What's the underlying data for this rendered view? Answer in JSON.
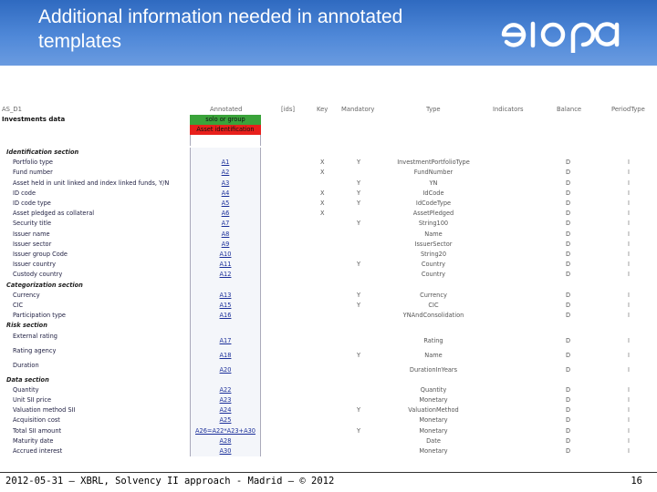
{
  "slide": {
    "title": "Additional information needed in annotated templates",
    "footer": "2012-05-31 – XBRL, Solvency II approach - Madrid – © 2012",
    "page_number": "16",
    "logo_text": "eıopa"
  },
  "sheet": {
    "code": "AS_D1",
    "name": "Investments data",
    "headers": {
      "annotated": "Annotated",
      "ids": "[ids]",
      "key": "Key",
      "mandatory": "Mandatory",
      "type": "Type",
      "indicators": "Indicators",
      "balance": "Balance",
      "period_type": "PeriodType"
    },
    "solo_group": "solo or group",
    "asset_identification": "Asset identification",
    "rows": [
      {
        "section": "Identification section"
      },
      {
        "label": "Portfolio type",
        "ann": "A1",
        "key": "X",
        "mand": "Y",
        "type": "InvestmentPortfolioType",
        "bal": "D",
        "per": "I"
      },
      {
        "label": "Fund number",
        "ann": "A2",
        "key": "X",
        "mand": "",
        "type": "FundNumber",
        "bal": "D",
        "per": "I"
      },
      {
        "label": "Asset held in unit linked and index linked funds, Y/N",
        "ann": "A3",
        "key": "",
        "mand": "Y",
        "type": "YN",
        "bal": "D",
        "per": "I"
      },
      {
        "label": "ID code",
        "ann": "A4",
        "key": "X",
        "mand": "Y",
        "type": "IdCode",
        "bal": "D",
        "per": "I"
      },
      {
        "label": "ID code type",
        "ann": "A5",
        "key": "X",
        "mand": "Y",
        "type": "IdCodeType",
        "bal": "D",
        "per": "I"
      },
      {
        "label": "Asset pledged as collateral",
        "ann": "A6",
        "key": "X",
        "mand": "",
        "type": "AssetPledged",
        "bal": "D",
        "per": "I"
      },
      {
        "label": "Security title",
        "ann": "A7",
        "key": "",
        "mand": "Y",
        "type": "String100",
        "bal": "D",
        "per": "I"
      },
      {
        "label": "Issuer name",
        "ann": "A8",
        "key": "",
        "mand": "",
        "type": "Name",
        "bal": "D",
        "per": "I"
      },
      {
        "label": "Issuer sector",
        "ann": "A9",
        "key": "",
        "mand": "",
        "type": "IssuerSector",
        "bal": "D",
        "per": "I"
      },
      {
        "label": "Issuer group Code",
        "ann": "A10",
        "key": "",
        "mand": "",
        "type": "String20",
        "bal": "D",
        "per": "I"
      },
      {
        "label": "Issuer country",
        "ann": "A11",
        "key": "",
        "mand": "Y",
        "type": "Country",
        "bal": "D",
        "per": "I"
      },
      {
        "label": "Custody country",
        "ann": "A12",
        "key": "",
        "mand": "",
        "type": "Country",
        "bal": "D",
        "per": "I"
      },
      {
        "section": "Categorization section"
      },
      {
        "label": "Currency",
        "ann": "A13",
        "key": "",
        "mand": "Y",
        "type": "Currency",
        "bal": "D",
        "per": "I"
      },
      {
        "label": "CIC",
        "ann": "A15",
        "key": "",
        "mand": "Y",
        "type": "CIC",
        "bal": "D",
        "per": "I"
      },
      {
        "label": "Participation type",
        "ann": "A16",
        "key": "",
        "mand": "",
        "type": "YNAndConsolidation",
        "bal": "D",
        "per": "I"
      },
      {
        "section": "Risk section"
      },
      {
        "label": "External rating",
        "ann": "A17",
        "key": "",
        "mand": "",
        "type": "Rating",
        "bal": "D",
        "per": "I",
        "tall": true
      },
      {
        "label": "Rating agency",
        "ann": "A18",
        "key": "",
        "mand": "Y",
        "type": "Name",
        "bal": "D",
        "per": "I",
        "tall": true
      },
      {
        "label": "Duration",
        "ann": "A20",
        "key": "",
        "mand": "",
        "type": "DurationInYears",
        "bal": "D",
        "per": "I",
        "tall": true
      },
      {
        "section": "Data section"
      },
      {
        "label": "Quantity",
        "ann": "A22",
        "key": "",
        "mand": "",
        "type": "Quantity",
        "bal": "D",
        "per": "I"
      },
      {
        "label": "Unit SII price",
        "ann": "A23",
        "key": "",
        "mand": "",
        "type": "Monetary",
        "bal": "D",
        "per": "I"
      },
      {
        "label": "Valuation method SII",
        "ann": "A24",
        "key": "",
        "mand": "Y",
        "type": "ValuationMethod",
        "bal": "D",
        "per": "I"
      },
      {
        "label": "Acquisition cost",
        "ann": "A25",
        "key": "",
        "mand": "",
        "type": "Monetary",
        "bal": "D",
        "per": "I"
      },
      {
        "label": "Total SII amount",
        "ann": "A26=A22*A23+A30",
        "key": "",
        "mand": "Y",
        "type": "Monetary",
        "bal": "D",
        "per": "I"
      },
      {
        "label": "Maturity date",
        "ann": "A28",
        "key": "",
        "mand": "",
        "type": "Date",
        "bal": "D",
        "per": "I"
      },
      {
        "label": "Accrued interest",
        "ann": "A30",
        "key": "",
        "mand": "",
        "type": "Monetary",
        "bal": "D",
        "per": "I"
      }
    ],
    "colors": {
      "green": "#3aa33a",
      "red": "#e8201c",
      "header_blue": "#3a74c8"
    }
  }
}
